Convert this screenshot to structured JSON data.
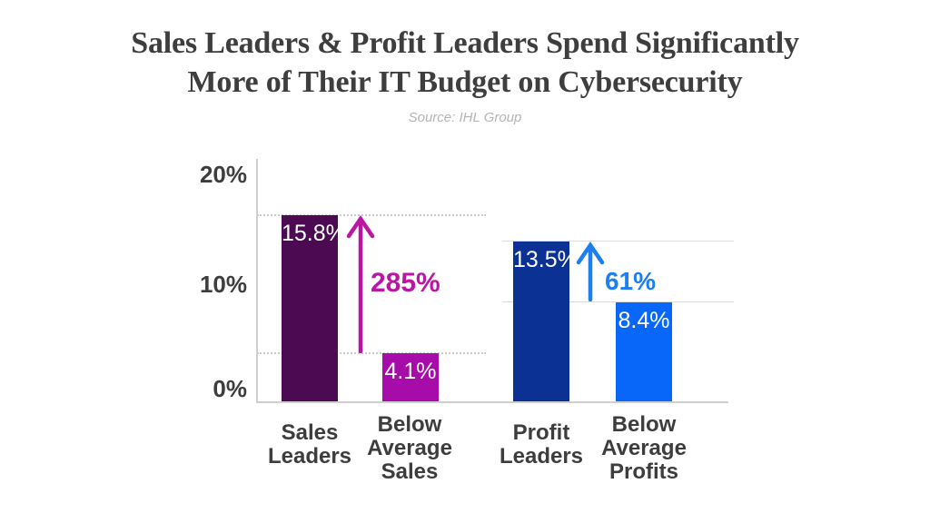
{
  "header": {
    "title_line1": "Sales Leaders & Profit Leaders Spend Significantly",
    "title_line2": "More of Their IT Budget on Cybersecurity",
    "source": "Source: IHL Group"
  },
  "chart_data": {
    "type": "bar",
    "title": "Sales Leaders & Profit Leaders Spend Significantly More of Their IT Budget on Cybersecurity",
    "source": "Source: IHL Group",
    "xlabel": "",
    "ylabel": "",
    "ylim": [
      0,
      20
    ],
    "grid": "partial reference lines at bar tops",
    "legend": "none",
    "yticks": [
      {
        "label": "20%",
        "value": 20
      },
      {
        "label": "10%",
        "value": 10
      },
      {
        "label": "0%",
        "value": 0
      }
    ],
    "categories": [
      "Sales Leaders",
      "Below Average Sales",
      "Profit Leaders",
      "Below Average Profits"
    ],
    "bars": [
      {
        "category": "Sales\nLeaders",
        "value": 15.8,
        "label": "15.8%",
        "color": "#4b0a52"
      },
      {
        "category": "Below\nAverage\nSales",
        "value": 4.1,
        "label": "4.1%",
        "color": "#a70cab"
      },
      {
        "category": "Profit\nLeaders",
        "value": 13.5,
        "label": "13.5%",
        "color": "#0b3194"
      },
      {
        "category": "Below\nAverage\nProfits",
        "value": 8.4,
        "label": "8.4%",
        "color": "#0867f9"
      }
    ],
    "annotations": [
      {
        "label": "285%",
        "color": "#bb16a3",
        "from_value": 4.1,
        "to_value": 15.8
      },
      {
        "label": "61%",
        "color": "#1d7ef0",
        "from_value": 8.4,
        "to_value": 13.5
      }
    ],
    "reference_lines": {
      "dotted_at_values": [
        15.8,
        4.1
      ],
      "solid_at_values": [
        13.5,
        8.4
      ]
    }
  }
}
